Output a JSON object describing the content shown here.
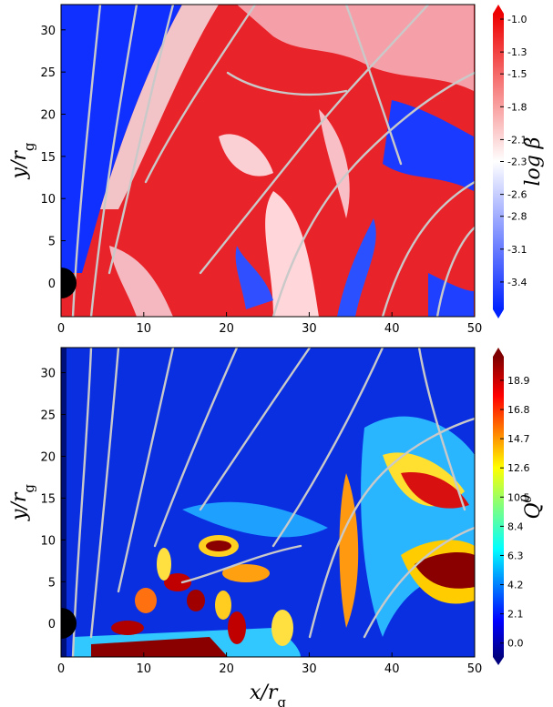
{
  "chart_data": [
    {
      "type": "heatmap",
      "colormap": "bwr",
      "xlim": [
        0,
        50
      ],
      "xticks": [
        0,
        10,
        20,
        30,
        40,
        50
      ],
      "ylim": [
        -4,
        33
      ],
      "yticks": [
        0,
        5,
        10,
        15,
        20,
        25,
        30
      ],
      "ylabel": {
        "main": "y/r",
        "sub": "g"
      },
      "colorbar": {
        "label": {
          "main": "log ",
          "sym": "β"
        },
        "lim": [
          -3.65,
          -0.95
        ],
        "ticks": [
          {
            "value": -1.0,
            "label": "-1.0"
          },
          -1.3,
          -1.5,
          -1.8,
          -2.1,
          -2.3,
          -2.6,
          -2.8,
          -3.1,
          -3.4
        ]
      }
    },
    {
      "type": "heatmap",
      "colormap": "jet",
      "xlim": [
        0,
        50
      ],
      "xticks": [
        0,
        10,
        20,
        30,
        40,
        50
      ],
      "ylim": [
        -4,
        33
      ],
      "yticks": [
        0,
        5,
        10,
        15,
        20,
        25,
        30
      ],
      "xlabel": {
        "main": "x/r",
        "sub": "g"
      },
      "ylabel": {
        "main": "y/r",
        "sub": "g"
      },
      "colorbar": {
        "label": {
          "main": "Q",
          "sup": "θ"
        },
        "lim": [
          -1,
          20.6
        ],
        "ticks": [
          {
            "value": 0,
            "label": "0.0"
          },
          2.1,
          4.2,
          6.3,
          8.4,
          10.5,
          12.6,
          14.7,
          16.8,
          18.9
        ]
      }
    }
  ]
}
